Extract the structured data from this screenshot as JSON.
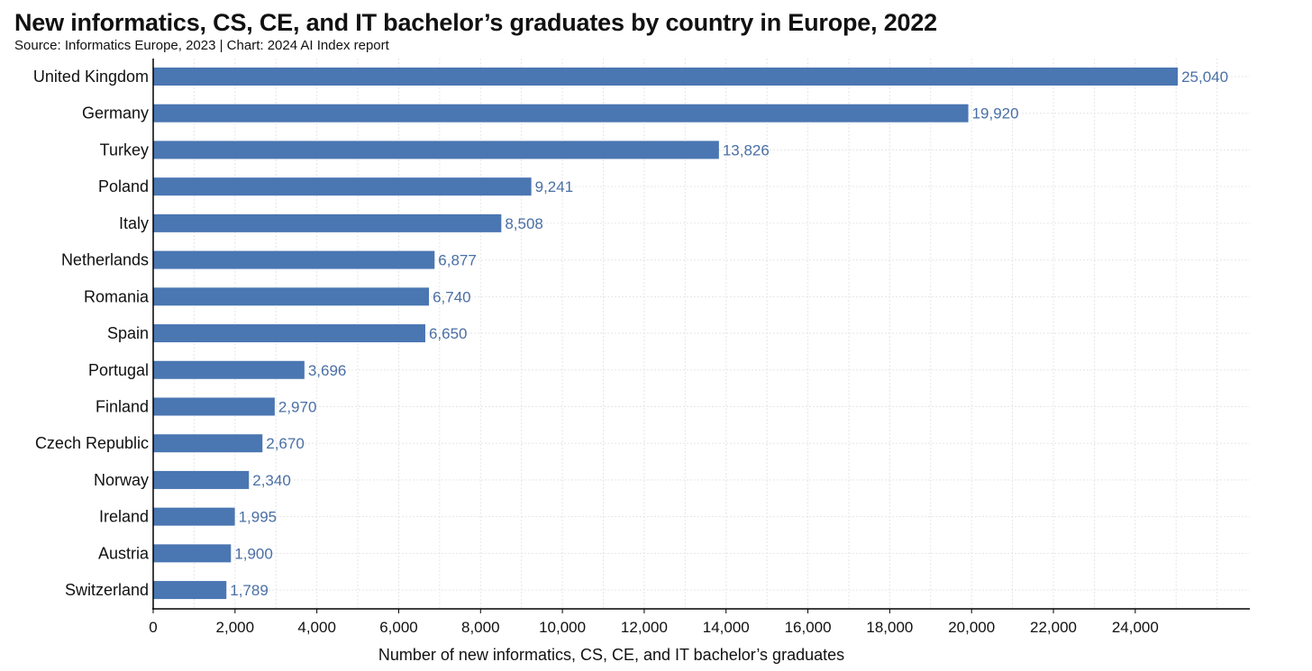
{
  "chart_data": {
    "type": "bar",
    "orientation": "horizontal",
    "title": "New informatics, CS, CE, and IT bachelor’s graduates by country in Europe, 2022",
    "subtitle": "Source: Informatics Europe, 2023 | Chart: 2024 AI Index report",
    "xlabel": "Number of new informatics, CS, CE, and IT bachelor’s graduates",
    "ylabel": "",
    "categories": [
      "United Kingdom",
      "Germany",
      "Turkey",
      "Poland",
      "Italy",
      "Netherlands",
      "Romania",
      "Spain",
      "Portugal",
      "Finland",
      "Czech Republic",
      "Norway",
      "Ireland",
      "Austria",
      "Switzerland"
    ],
    "values": [
      25040,
      19920,
      13826,
      9241,
      8508,
      6877,
      6740,
      6650,
      3696,
      2970,
      2670,
      2340,
      1995,
      1900,
      1789
    ],
    "value_labels": [
      "25,040",
      "19,920",
      "13,826",
      "9,241",
      "8,508",
      "6,877",
      "6,740",
      "6,650",
      "3,696",
      "2,970",
      "2,670",
      "2,340",
      "1,995",
      "1,900",
      "1,789"
    ],
    "xlim": [
      0,
      26800
    ],
    "xticks": [
      0,
      2000,
      4000,
      6000,
      8000,
      10000,
      12000,
      14000,
      16000,
      18000,
      20000,
      22000,
      24000
    ],
    "xtick_labels": [
      "0",
      "2,000",
      "4,000",
      "6,000",
      "8,000",
      "10,000",
      "12,000",
      "14,000",
      "16,000",
      "18,000",
      "20,000",
      "22,000",
      "24,000"
    ],
    "grid": true,
    "bar_color": "#4a76b2",
    "label_color": "#4a6fa5",
    "grid_color": "#e6e6e6"
  }
}
